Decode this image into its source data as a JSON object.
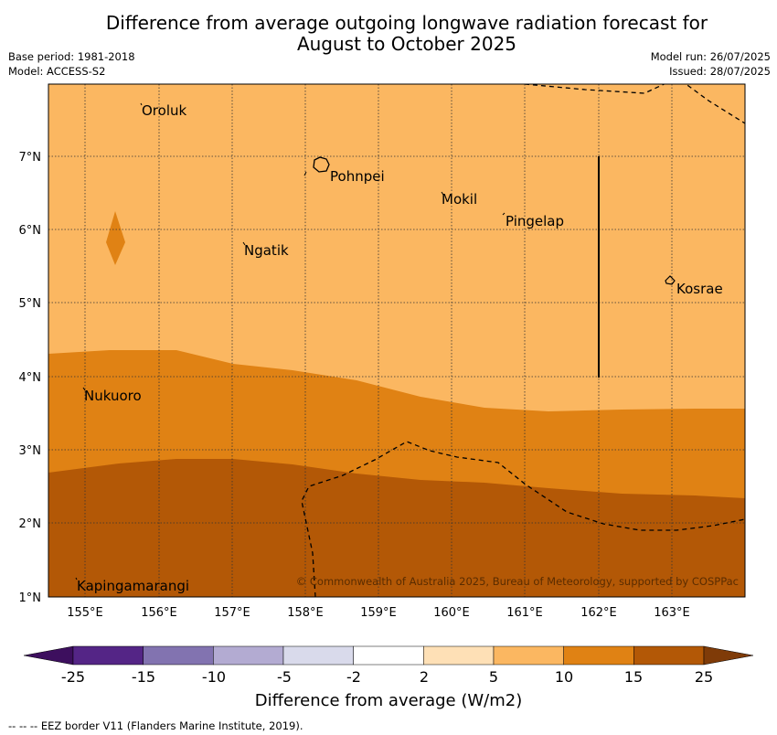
{
  "title_line1": "Difference from average outgoing longwave radiation forecast for",
  "title_line2": "August to October 2025",
  "base_period": "Base period: 1981-2018",
  "model": "Model: ACCESS-S2",
  "model_run": "Model run: 26/07/2025",
  "issued": "Issued: 28/07/2025",
  "x_ticks": [
    "155°E",
    "156°E",
    "157°E",
    "158°E",
    "159°E",
    "160°E",
    "161°E",
    "162°E",
    "163°E"
  ],
  "y_ticks": [
    "7°N",
    "6°N",
    "5°N",
    "4°N",
    "3°N",
    "2°N",
    "1°N"
  ],
  "places": [
    {
      "name": "Oroluk"
    },
    {
      "name": "Pohnpei"
    },
    {
      "name": "Mokil"
    },
    {
      "name": "Pingelap"
    },
    {
      "name": "Ngatik"
    },
    {
      "name": "Kosrae"
    },
    {
      "name": "Nukuoro"
    },
    {
      "name": "Kapingamarangi"
    }
  ],
  "copyright": "© Commonwealth of Australia 2025, Bureau of Meteorology, supported by COSPPac",
  "colorbar": {
    "ticks": [
      "-25",
      "-15",
      "-10",
      "-5",
      "-2",
      "2",
      "5",
      "10",
      "15",
      "25"
    ],
    "label": "Difference from average (W/m2)",
    "colors": [
      "#3d0f5e",
      "#542586",
      "#8273b0",
      "#b3abd2",
      "#d9daeb",
      "#ffffff",
      "#fee0b6",
      "#fbb761",
      "#e08214",
      "#b35806",
      "#7f3b08"
    ]
  },
  "legend_note": "--  --  -- EEZ border V11 (Flanders Marine Institute, 2019)."
}
